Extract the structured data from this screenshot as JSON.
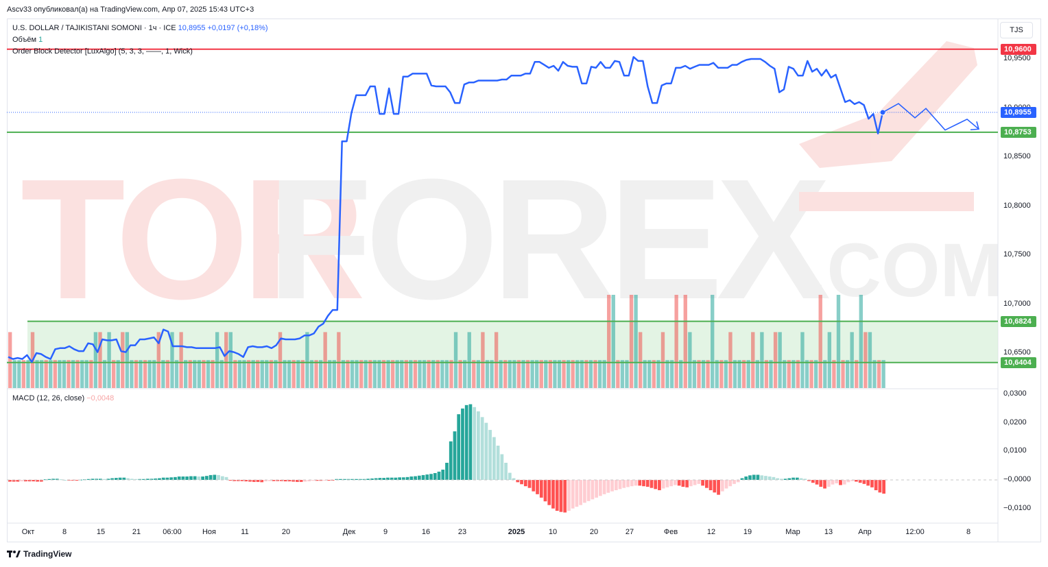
{
  "header": {
    "published_by": "Ascv33 опубликовал(а) на TradingView.com, Апр 07, 2025 15:43 UTC+3"
  },
  "legend": {
    "symbol": "U.S. DOLLAR / TAJIKISTANI SOMONI · 1ч · ICE",
    "price": "10,8955",
    "change": "+0,0197 (+0,18%)",
    "volume_label": "Объём",
    "volume_value": "1",
    "indicator": "Order Block Detector [LuxAlgo] (5, 3, 3, ——, 1, Wick)",
    "macd_label": "MACD (12, 26, close)",
    "macd_value": "−0,0048"
  },
  "currency_button": "TJS",
  "watermark": {
    "main": "TORFOREX",
    "suffix": ".COM"
  },
  "price_axis": {
    "ticks": [
      "10,9500",
      "10,9000",
      "10,8500",
      "10,8000",
      "10,7500",
      "10,7000",
      "10,6500"
    ],
    "tick_values": [
      10.95,
      10.9,
      10.85,
      10.8,
      10.75,
      10.7,
      10.65
    ]
  },
  "price_labels": [
    {
      "text": "10,9600",
      "value": 10.96,
      "color": "#f23645"
    },
    {
      "text": "10,8955",
      "value": 10.8955,
      "color": "#2962ff"
    },
    {
      "text": "10,8753",
      "value": 10.8753,
      "color": "#4caf50"
    },
    {
      "text": "10,6824",
      "value": 10.6824,
      "color": "#4caf50"
    },
    {
      "text": "10,6404",
      "value": 10.6404,
      "color": "#4caf50"
    }
  ],
  "macd_axis": {
    "ticks": [
      "0,0300",
      "0,0200",
      "0,0100",
      "−0,0000",
      "−0,0100"
    ],
    "tick_values": [
      0.03,
      0.02,
      0.01,
      0.0,
      -0.01
    ]
  },
  "time_axis": {
    "labels": [
      "Окт",
      "8",
      "15",
      "21",
      "06:00",
      "Ноя",
      "11",
      "20",
      "Дек",
      "9",
      "16",
      "23",
      "2025",
      "10",
      "20",
      "27",
      "Фев",
      "12",
      "19",
      "Мар",
      "13",
      "Апр",
      "12:00",
      "8"
    ],
    "bold": [
      "2025"
    ]
  },
  "branding": {
    "name": "TradingView"
  },
  "chart_data": {
    "type": "line",
    "title": "U.S. DOLLAR / TAJIKISTANI SOMONI · 1ч · ICE",
    "price_range": [
      10.6,
      10.975
    ],
    "horizontal_levels": {
      "resistance": 10.96,
      "support": 10.8753,
      "last_price": 10.8955,
      "order_block_top": 10.6824,
      "order_block_bottom": 10.6404
    },
    "price_series": [
      10.646,
      10.644,
      10.645,
      10.644,
      10.648,
      10.641,
      10.65,
      10.649,
      10.646,
      10.644,
      10.654,
      10.655,
      10.655,
      10.657,
      10.654,
      10.652,
      10.652,
      10.66,
      10.659,
      10.651,
      10.664,
      10.663,
      10.663,
      10.664,
      10.652,
      10.651,
      10.658,
      10.658,
      10.664,
      10.664,
      10.665,
      10.666,
      10.66,
      10.674,
      10.672,
      10.657,
      10.657,
      10.657,
      10.656,
      10.656,
      10.655,
      10.655,
      10.655,
      10.655,
      10.655,
      10.656,
      10.647,
      10.652,
      10.651,
      10.649,
      10.646,
      10.656,
      10.657,
      10.656,
      10.656,
      10.657,
      10.655,
      10.658,
      10.665,
      10.664,
      10.664,
      10.664,
      10.665,
      10.668,
      10.668,
      10.67,
      10.677,
      10.68,
      10.688,
      10.694,
      10.694,
      10.866,
      10.866,
      10.895,
      10.913,
      10.913,
      10.913,
      10.922,
      10.922,
      10.894,
      10.894,
      10.92,
      10.894,
      10.894,
      10.932,
      10.932,
      10.935,
      10.935,
      10.935,
      10.935,
      10.923,
      10.922,
      10.922,
      10.922,
      10.916,
      10.905,
      10.905,
      10.924,
      10.926,
      10.926,
      10.928,
      10.928,
      10.928,
      10.928,
      10.928,
      10.929,
      10.929,
      10.933,
      10.933,
      10.933,
      10.935,
      10.935,
      10.947,
      10.947,
      10.944,
      10.941,
      10.943,
      10.938,
      10.947,
      10.943,
      10.942,
      10.942,
      10.925,
      10.925,
      10.942,
      10.941,
      10.947,
      10.941,
      10.941,
      10.948,
      10.947,
      10.933,
      10.933,
      10.952,
      10.948,
      10.948,
      10.922,
      10.905,
      10.905,
      10.923,
      10.925,
      10.925,
      10.941,
      10.941,
      10.943,
      10.94,
      10.942,
      10.944,
      10.944,
      10.944,
      10.946,
      10.941,
      10.941,
      10.941,
      10.944,
      10.944,
      10.947,
      10.949,
      10.95,
      10.95,
      10.95,
      10.947,
      10.943,
      10.94,
      10.916,
      10.919,
      10.942,
      10.94,
      10.933,
      10.933,
      10.948,
      10.937,
      10.94,
      10.933,
      10.939,
      10.931,
      10.934,
      10.92,
      10.906,
      10.908,
      10.904,
      10.906,
      10.903,
      10.889,
      10.894,
      10.874,
      10.8955
    ],
    "projection_path": [
      [
        10.8955,
        0
      ],
      [
        10.9045,
        1
      ],
      [
        10.89,
        2
      ],
      [
        10.8995,
        3
      ],
      [
        10.8775,
        4
      ],
      [
        10.8885,
        5
      ],
      [
        10.8785,
        6
      ]
    ],
    "volume_bars": {
      "description_values_relative": "per bar height in fraction of max",
      "values": [
        0.6,
        0.3,
        0.3,
        0.3,
        0.3,
        0.6,
        0.3,
        0.3,
        0.3,
        0.3,
        0.3,
        0.3,
        0.3,
        0.3,
        0.3,
        0.3,
        0.3,
        0.3,
        0.3,
        0.6,
        0.6,
        0.3,
        0.6,
        0.3,
        0.3,
        0.6,
        0.6,
        0.3,
        0.3,
        0.3,
        0.3,
        0.3,
        0.3,
        0.6,
        0.3,
        0.3,
        0.6,
        0.3,
        0.6,
        0.3,
        0.3,
        0.3,
        0.3,
        0.3,
        0.3,
        0.3,
        0.6,
        0.3,
        0.6,
        0.6,
        0.3,
        0.3,
        0.3,
        0.3,
        0.3,
        0.3,
        0.3,
        0.3,
        0.3,
        0.3,
        0.6,
        0.3,
        0.3,
        0.3,
        0.3,
        0.3,
        0.6,
        0.3,
        0.3,
        0.3,
        0.6,
        0.3,
        0.3,
        0.6,
        0.3,
        0.3,
        0.3,
        0.3,
        0.3,
        0.3,
        0.3,
        0.3,
        0.3,
        0.3,
        0.3,
        0.3,
        0.3,
        0.3,
        0.3,
        0.3,
        0.3,
        0.3,
        0.3,
        0.3,
        0.3,
        0.3,
        0.3,
        0.3,
        0.3,
        0.6,
        0.3,
        0.3,
        0.6,
        0.3,
        0.3,
        0.6,
        0.3,
        0.3,
        0.6,
        0.3,
        0.3,
        0.3,
        0.3,
        0.3,
        0.3,
        0.3,
        0.3,
        0.3,
        0.3,
        0.3,
        0.3,
        0.3,
        0.3,
        0.3,
        0.3,
        0.3,
        0.3,
        0.3,
        0.3,
        0.3,
        0.3,
        0.3,
        0.3,
        0.3,
        0.3,
        0.3,
        0.3,
        0.3,
        0.3,
        0.3,
        0.3,
        0.3,
        0.3,
        0.3,
        0.3,
        0.6,
        0.3,
        0.3,
        0.3,
        0.3,
        0.3,
        0.3,
        0.3,
        0.3,
        0.3,
        0.3,
        0.3,
        0.3,
        0.3,
        0.3,
        0.6,
        0.3,
        0.3,
        0.3,
        0.3,
        0.3,
        0.3,
        0.3,
        0.3,
        0.3,
        0.3,
        0.3,
        0.3,
        0.3,
        0.3,
        0.3,
        0.3,
        0.3,
        0.3,
        0.3,
        0.3,
        0.3,
        0.3,
        0.3,
        0.3,
        0.3,
        0.3,
        0.3,
        0.3,
        0.3,
        0.3,
        0.3,
        0.3,
        0.3,
        0.3
      ],
      "spikes": [
        [
          133,
          1.0
        ],
        [
          134,
          1.0
        ],
        [
          138,
          1.0
        ],
        [
          139,
          1.0
        ],
        [
          140,
          0.6
        ],
        [
          148,
          1.0
        ],
        [
          150,
          1.0
        ],
        [
          151,
          0.6
        ],
        [
          156,
          1.0
        ],
        [
          160,
          0.6
        ],
        [
          165,
          0.6
        ],
        [
          167,
          0.6
        ],
        [
          170,
          0.6
        ],
        [
          171,
          0.6
        ],
        [
          176,
          0.6
        ],
        [
          180,
          1.0
        ],
        [
          182,
          0.6
        ],
        [
          184,
          1.0
        ],
        [
          187,
          0.6
        ],
        [
          189,
          1.0
        ],
        [
          190,
          0.6
        ],
        [
          191,
          0.6
        ]
      ]
    },
    "macd_histogram": [
      -0.0006,
      -0.0006,
      -0.0006,
      -0.0005,
      -0.0005,
      -0.0005,
      -0.0005,
      -0.0006,
      -0.0006,
      0.0002,
      0.0003,
      0.0004,
      0.0004,
      0.0002,
      0.0,
      -0.0002,
      -0.0002,
      -0.0002,
      0.0001,
      0.0002,
      0.0003,
      0.0004,
      0.0004,
      0.0004,
      0.0003,
      0.0004,
      0.0006,
      0.0007,
      0.0008,
      0.0008,
      0.0006,
      0.0004,
      0.0003,
      0.0003,
      0.0003,
      0.0004,
      0.0004,
      0.0005,
      0.0006,
      0.0008,
      0.0008,
      0.0009,
      0.001,
      0.0012,
      0.0012,
      0.0012,
      0.0013,
      0.0013,
      0.0012,
      0.0012,
      0.0014,
      0.0017,
      0.0018,
      0.0017,
      0.0013,
      0.001,
      -0.0002,
      -0.0004,
      -0.0004,
      -0.0004,
      -0.0005,
      -0.0006,
      -0.0007,
      -0.0007,
      -0.0008,
      -0.0005,
      -0.0004,
      -0.0004,
      -0.0004,
      -0.0004,
      -0.0005,
      -0.0005,
      -0.0006,
      -0.0007,
      -0.0007,
      -0.0006,
      -0.0005,
      -0.0003,
      -0.0003,
      -0.0003,
      -0.0002,
      -0.0002,
      -0.0002,
      0.0003,
      0.0003,
      0.0003,
      0.0003,
      0.0003,
      0.0003,
      0.0003,
      0.0003,
      0.0004,
      0.0005,
      0.0006,
      0.0007,
      0.0007,
      0.0008,
      0.0008,
      0.0008,
      0.0009,
      0.0009,
      0.001,
      0.0012,
      0.0013,
      0.0015,
      0.0017,
      0.0019,
      0.0021,
      0.0024,
      0.0029,
      0.0036,
      0.006,
      0.0135,
      0.017,
      0.023,
      0.025,
      0.0262,
      0.0265,
      0.0255,
      0.024,
      0.022,
      0.02,
      0.0175,
      0.015,
      0.012,
      0.009,
      0.006,
      0.0025,
      0.0006,
      -0.0008,
      -0.0015,
      -0.0022,
      -0.0028,
      -0.004,
      -0.005,
      -0.0062,
      -0.0075,
      -0.0088,
      -0.01,
      -0.0108,
      -0.0112,
      -0.0114,
      -0.0108,
      -0.01,
      -0.0094,
      -0.0088,
      -0.008,
      -0.0074,
      -0.0068,
      -0.0062,
      -0.0056,
      -0.005,
      -0.0045,
      -0.004,
      -0.0036,
      -0.0032,
      -0.0028,
      -0.0025,
      -0.0022,
      -0.002,
      -0.002,
      -0.0022,
      -0.0024,
      -0.0028,
      -0.0032,
      -0.0036,
      -0.003,
      -0.0026,
      -0.0022,
      -0.0018,
      -0.002,
      -0.0024,
      -0.0026,
      -0.0022,
      -0.0018,
      -0.0014,
      -0.002,
      -0.0028,
      -0.0036,
      -0.0044,
      -0.0052,
      -0.004,
      -0.003,
      -0.0022,
      -0.0014,
      -0.0008,
      0.0006,
      0.0012,
      0.0016,
      0.0018,
      0.0018,
      0.0016,
      0.0014,
      0.0012,
      0.001,
      0.0006,
      0.0004,
      0.0004,
      0.0006,
      0.0008,
      0.0008,
      0.0006,
      0.0004,
      -0.0004,
      -0.001,
      -0.0016,
      -0.0024,
      -0.003,
      -0.0024,
      -0.0016,
      -0.0012,
      -0.0018,
      -0.0016,
      -0.0008,
      -0.0004,
      -0.0006,
      -0.001,
      -0.0014,
      -0.002,
      -0.0026,
      -0.0036,
      -0.0044,
      -0.0048
    ],
    "colors": {
      "line": "#2962ff",
      "resistance": "#f23645",
      "support": "#4caf50",
      "order_block_fill": "#c8e6c9",
      "volume_up": "#26a69a",
      "volume_down": "#ef5350",
      "macd_pos_strong": "#26a69a",
      "macd_pos_weak": "#b2dfdb",
      "macd_neg_strong": "#ff5252",
      "macd_neg_weak": "#ffcdd2"
    }
  }
}
